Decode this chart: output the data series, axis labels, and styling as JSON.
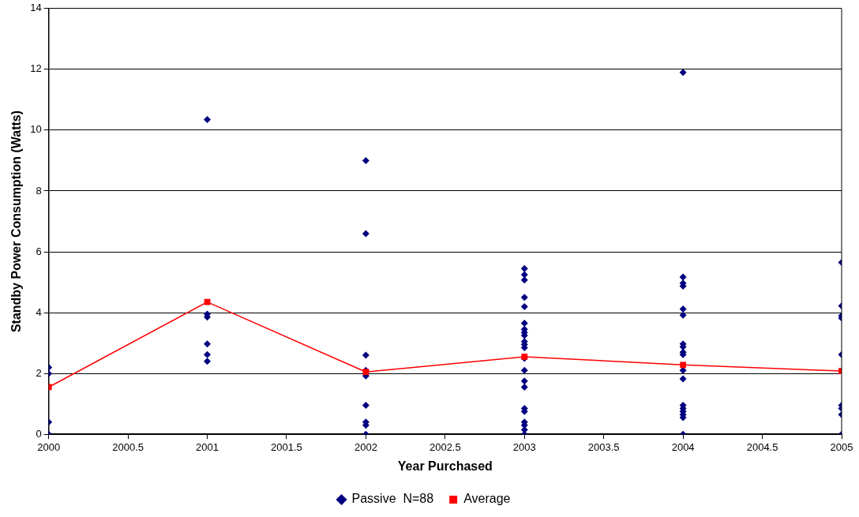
{
  "chart_data": {
    "type": "scatter",
    "xlabel": "Year Purchased",
    "ylabel": "Standby Power Consumption (Watts)",
    "xlim": [
      2000,
      2005
    ],
    "xticks": [
      2000,
      2000.5,
      2001,
      2001.5,
      2002,
      2002.5,
      2003,
      2003.5,
      2004,
      2004.5,
      2005
    ],
    "ylim": [
      0,
      14
    ],
    "yticks": [
      0,
      2,
      4,
      6,
      8,
      10,
      12,
      14
    ],
    "grid": "y",
    "legend": "bottom",
    "series": [
      {
        "name": "Passive  N=88",
        "marker": "diamond",
        "color": "#000080",
        "x": [
          2000,
          2000,
          2000,
          2000,
          2001,
          2001,
          2001,
          2001,
          2001,
          2001,
          2002,
          2002,
          2002,
          2002,
          2002,
          2002,
          2002,
          2002,
          2002,
          2002,
          2003,
          2003,
          2003,
          2003,
          2003,
          2003,
          2003,
          2003,
          2003,
          2003,
          2003,
          2003,
          2003,
          2003,
          2003,
          2003,
          2003,
          2003,
          2003,
          2003,
          2003,
          2003,
          2004,
          2004,
          2004,
          2004,
          2004,
          2004,
          2004,
          2004,
          2004,
          2004,
          2004,
          2004,
          2004,
          2004,
          2004,
          2004,
          2004,
          2004,
          2005,
          2005,
          2005,
          2005,
          2005,
          2005,
          2005,
          2005,
          2005
        ],
        "values": [
          2.2,
          2.0,
          0.4,
          0,
          10.35,
          3.95,
          3.85,
          2.97,
          2.62,
          2.4,
          9.0,
          6.6,
          2.6,
          2.1,
          2.0,
          1.92,
          0.95,
          0.4,
          0.3,
          0,
          5.45,
          5.25,
          5.07,
          4.5,
          4.2,
          3.65,
          3.45,
          3.35,
          3.25,
          3.05,
          2.95,
          2.85,
          2.5,
          2.1,
          1.75,
          1.55,
          0.85,
          0.75,
          0.4,
          0.3,
          0.15,
          0,
          11.9,
          5.17,
          4.97,
          4.87,
          4.12,
          3.92,
          2.97,
          2.87,
          2.7,
          2.62,
          2.1,
          1.82,
          0.95,
          0.85,
          0.75,
          0.65,
          0.55,
          0,
          5.65,
          4.22,
          3.9,
          3.82,
          2.62,
          0.95,
          0.85,
          0.65,
          0
        ]
      },
      {
        "name": "Average",
        "type": "line",
        "marker": "square",
        "color": "#ff0000",
        "x": [
          2000,
          2001,
          2002,
          2003,
          2004,
          2005
        ],
        "values": [
          1.55,
          4.35,
          2.05,
          2.55,
          2.28,
          2.08
        ]
      }
    ]
  }
}
